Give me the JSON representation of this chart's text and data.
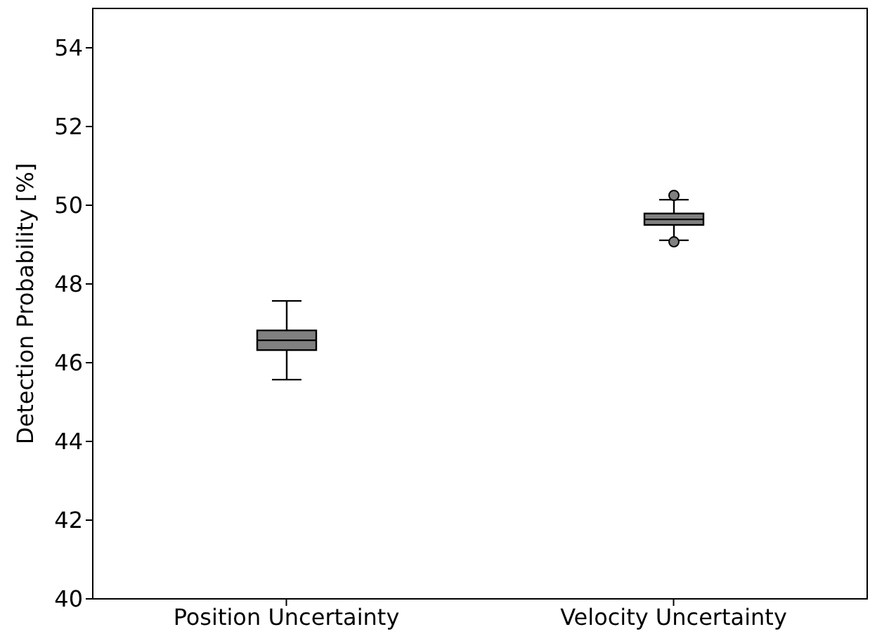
{
  "chart_data": {
    "type": "box",
    "ylabel": "Detection Probability [%]",
    "categories": [
      "Position Uncertainty",
      "Velocity Uncertainty"
    ],
    "color": "#808080",
    "ylim": [
      40,
      55
    ],
    "yticks": [
      40,
      42,
      44,
      46,
      48,
      50,
      52,
      54
    ],
    "grid": false,
    "boxes": [
      {
        "low": 45.57,
        "q1": 46.32,
        "median": 46.57,
        "q3": 46.82,
        "high": 47.57
      },
      {
        "low": 49.11,
        "q1": 49.5,
        "median": 49.64,
        "q3": 49.79,
        "high": 50.14,
        "outliers": [
          50.25,
          49.07
        ]
      }
    ]
  }
}
